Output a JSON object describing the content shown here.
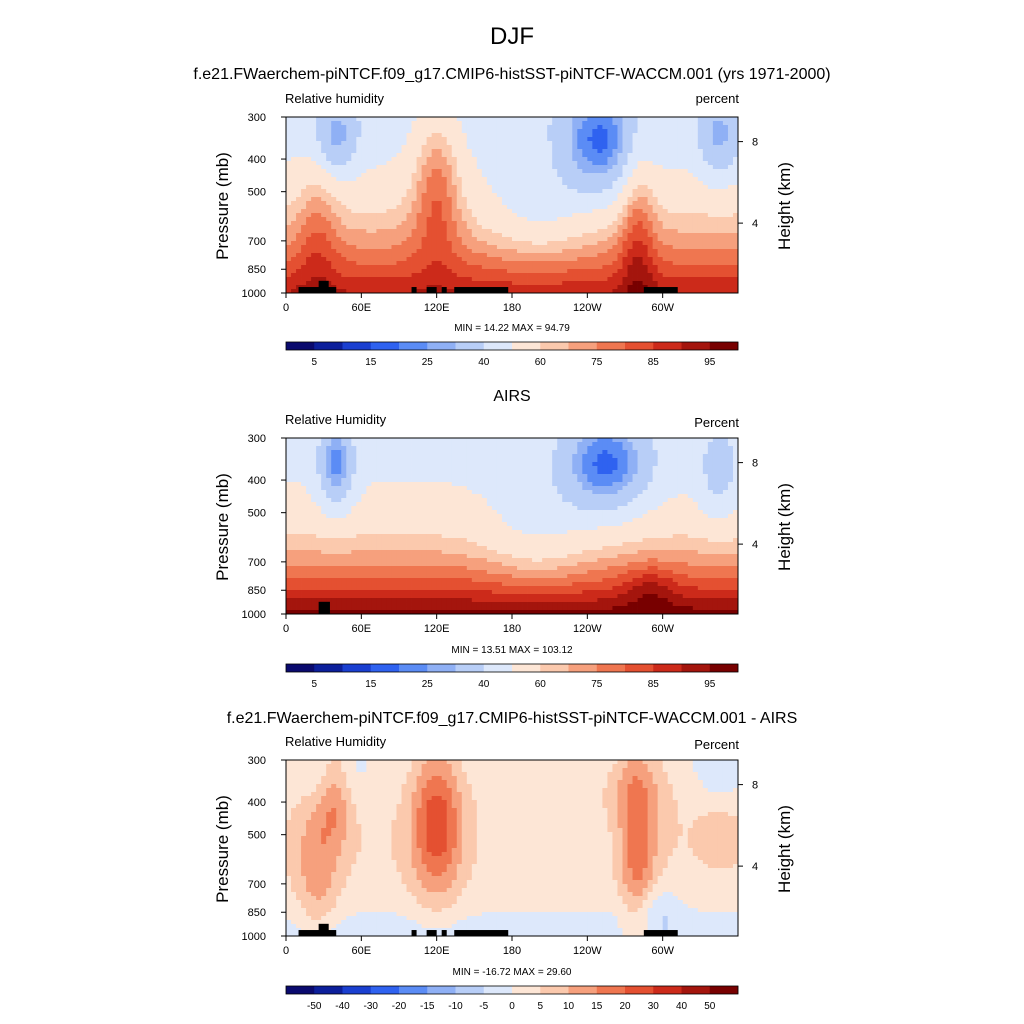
{
  "figure": {
    "title": "DJF",
    "colors": {
      "abs_palette": [
        "#0a0a6e",
        "#0c1f9b",
        "#1a3fd0",
        "#2f62f0",
        "#5b8cf5",
        "#8fb0f5",
        "#b8cef7",
        "#dde8fb",
        "#fde6d6",
        "#fbc9ad",
        "#f6a07d",
        "#ef7650",
        "#e45031",
        "#cc2a1a",
        "#a4150d",
        "#780000"
      ],
      "diff_palette": [
        "#0a0a6e",
        "#0c1f9b",
        "#1a3fd0",
        "#2f62f0",
        "#5b8cf5",
        "#8fb0f5",
        "#b8cef7",
        "#dde8fb",
        "#fde6d6",
        "#fbc9ad",
        "#f6a07d",
        "#ef7650",
        "#e45031",
        "#cc2a1a",
        "#a4150d",
        "#780000"
      ]
    }
  },
  "chart_data": [
    {
      "type": "heatmap",
      "title": "f.e21.FWaerchem-piNTCF.f09_g17.CMIP6-histSST-piNTCF-WACCM.001 (yrs 1971-2000)",
      "left_label": "Relative humidity",
      "right_label": "percent",
      "xlabel": "",
      "ylabel": "Pressure (mb)",
      "y2label": "Height (km)",
      "x_ticks": [
        "0",
        "60E",
        "120E",
        "180",
        "120W",
        "60W"
      ],
      "y_ticks": [
        "300",
        "400",
        "500",
        "700",
        "850",
        "1000"
      ],
      "y2_ticks": [
        "8",
        "4"
      ],
      "stats": "MIN =  14.22  MAX =  94.79",
      "colorbar_labels": [
        "5",
        "15",
        "25",
        "40",
        "60",
        "75",
        "85",
        "95"
      ],
      "xlim": [
        0,
        360
      ],
      "ylim": [
        1000,
        300
      ],
      "terrain_surface_mb": [
        [
          10,
          40,
          960
        ],
        [
          26,
          34,
          920
        ],
        [
          100,
          104,
          960
        ],
        [
          112,
          120,
          960
        ],
        [
          124,
          128,
          960
        ],
        [
          134,
          177,
          960
        ],
        [
          285,
          312,
          960
        ]
      ]
    },
    {
      "type": "heatmap",
      "title": "AIRS",
      "left_label": "Relative Humidity",
      "right_label": "Percent",
      "xlabel": "",
      "ylabel": "Pressure (mb)",
      "y2label": "Height (km)",
      "x_ticks": [
        "0",
        "60E",
        "120E",
        "180",
        "120W",
        "60W"
      ],
      "y_ticks": [
        "300",
        "400",
        "500",
        "700",
        "850",
        "1000"
      ],
      "y2_ticks": [
        "8",
        "4"
      ],
      "stats": "MIN =  13.51  MAX = 103.12",
      "colorbar_labels": [
        "5",
        "15",
        "25",
        "40",
        "60",
        "75",
        "85",
        "95"
      ],
      "xlim": [
        0,
        360
      ],
      "ylim": [
        1000,
        300
      ],
      "terrain_surface_mb": [
        [
          26,
          35,
          920
        ]
      ]
    },
    {
      "type": "heatmap",
      "title": "f.e21.FWaerchem-piNTCF.f09_g17.CMIP6-histSST-piNTCF-WACCM.001 - AIRS",
      "left_label": "Relative Humidity",
      "right_label": "Percent",
      "xlabel": "",
      "ylabel": "Pressure (mb)",
      "y2label": "Height (km)",
      "x_ticks": [
        "0",
        "60E",
        "120E",
        "180",
        "120W",
        "60W"
      ],
      "y_ticks": [
        "300",
        "400",
        "500",
        "700",
        "850",
        "1000"
      ],
      "y2_ticks": [
        "8",
        "4"
      ],
      "stats": "MIN = -16.72  MAX =  29.60",
      "colorbar_labels": [
        "-50",
        "-40",
        "-30",
        "-20",
        "-15",
        "-10",
        "-5",
        "0",
        "5",
        "10",
        "15",
        "20",
        "30",
        "40",
        "50"
      ],
      "xlim": [
        0,
        360
      ],
      "ylim": [
        1000,
        300
      ],
      "terrain_surface_mb": [
        [
          10,
          40,
          960
        ],
        [
          26,
          34,
          920
        ],
        [
          100,
          104,
          960
        ],
        [
          112,
          120,
          960
        ],
        [
          124,
          128,
          960
        ],
        [
          134,
          177,
          960
        ],
        [
          285,
          312,
          960
        ]
      ]
    }
  ]
}
